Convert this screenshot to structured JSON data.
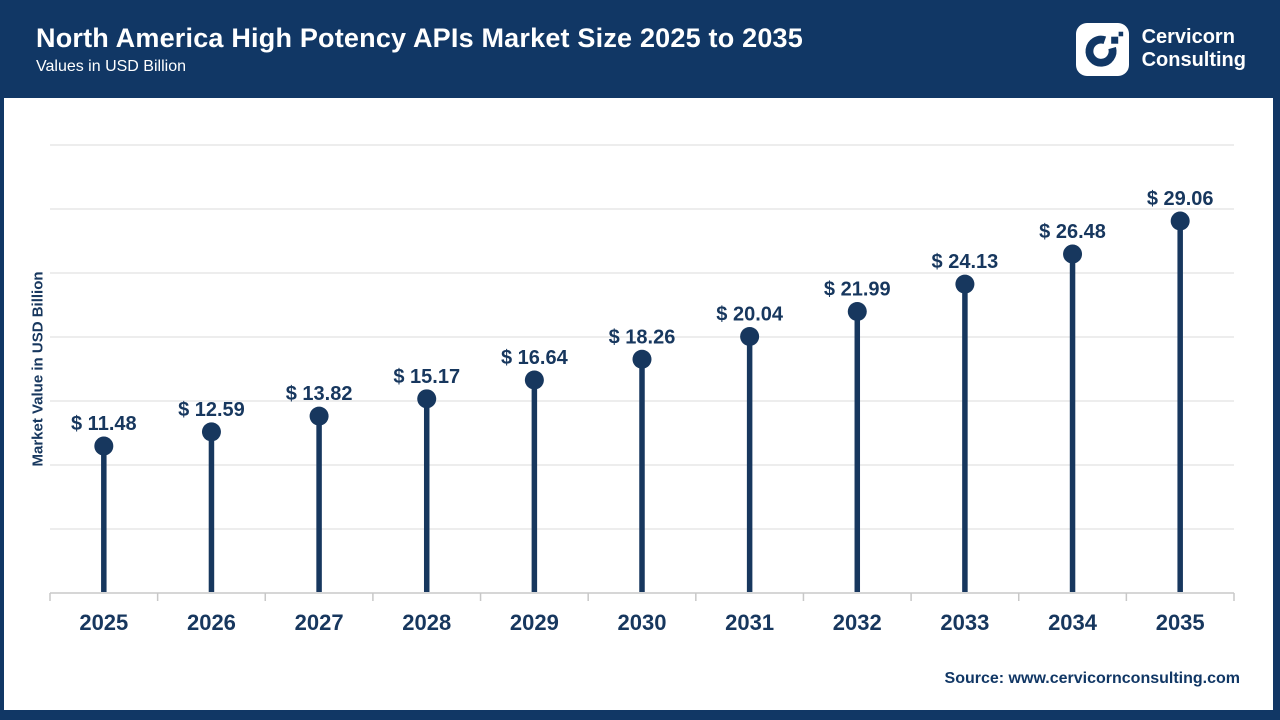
{
  "header": {
    "title": "North America High Potency APIs Market Size 2025 to 2035",
    "subtitle": "Values in USD Billion",
    "brand_line1": "Cervicorn",
    "brand_line2": "Consulting"
  },
  "colors": {
    "header_navy": "#113765",
    "chart_navy": "#17375E",
    "gridline": "#E7E7E7",
    "axis": "#C8C8C8",
    "logo_mark": "#113765"
  },
  "chart_data": {
    "type": "lollipop",
    "title": "North America High Potency APIs Market Size 2025 to 2035",
    "subtitle": "Values in USD Billion",
    "categories": [
      "2025",
      "2026",
      "2027",
      "2028",
      "2029",
      "2030",
      "2031",
      "2032",
      "2033",
      "2034",
      "2035"
    ],
    "values": [
      11.48,
      12.59,
      13.82,
      15.17,
      16.64,
      18.26,
      20.04,
      21.99,
      24.13,
      26.48,
      29.06
    ],
    "value_prefix": "$ ",
    "xlabel": "",
    "ylabel": "Market Value in USD Billion",
    "ylim": [
      0,
      35
    ],
    "grid_step": 5,
    "grid": true,
    "y_tick_labels_shown": false,
    "legend": false
  },
  "footer": {
    "source": "Source: www.cervicornconsulting.com"
  }
}
